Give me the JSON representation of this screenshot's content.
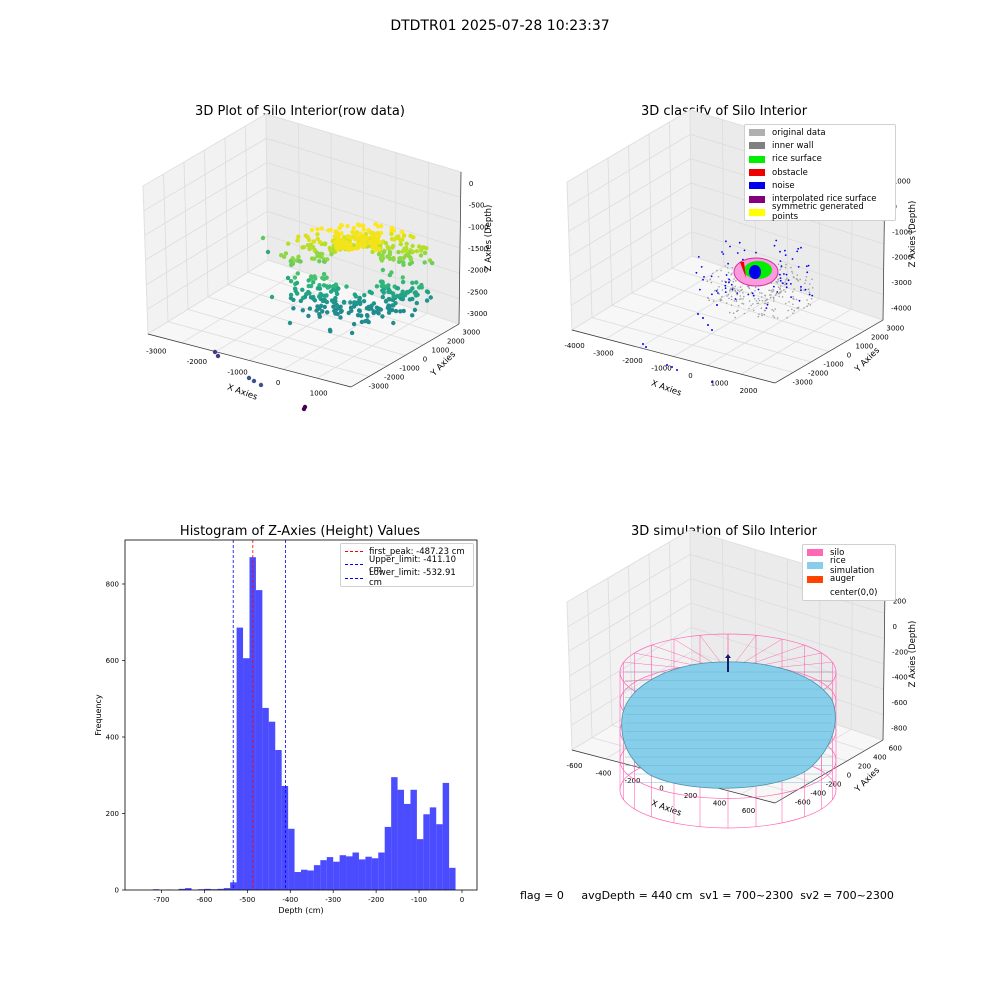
{
  "figure": {
    "suptitle": "DTDTR01 2025-07-28 10:23:37",
    "footer": "flag = 0     avgDepth = 440 cm  sv1 = 700~2300  sv2 = 700~2300"
  },
  "panels": {
    "raw": {
      "title": "3D Plot of Silo Interior(row data)",
      "xlabel": "X Axies",
      "ylabel": "Y Axies",
      "zlabel": "Z Axies (Depth)",
      "xticks": [
        "-3000",
        "-2000",
        "-1000",
        "0",
        "1000"
      ],
      "yticks": [
        "-3000",
        "-2000",
        "-1000",
        "0",
        "1000",
        "2000",
        "3000"
      ],
      "zticks": [
        "0",
        "-500",
        "-1000",
        "-1500",
        "-2000",
        "-2500",
        "-3000"
      ]
    },
    "classify": {
      "title": "3D classify of Silo Interior",
      "xlabel": "X Axies",
      "ylabel": "Y Axies",
      "zlabel": "Z Axies (Depth)",
      "xticks": [
        "-4000",
        "-3000",
        "-2000",
        "-1000",
        "0",
        "1000",
        "2000"
      ],
      "yticks": [
        "-3000",
        "-2000",
        "-1000",
        "0",
        "1000",
        "2000",
        "3000"
      ],
      "zticks": [
        "1000",
        "0",
        "-1000",
        "-2000",
        "-3000",
        "-4000"
      ],
      "legend": [
        {
          "label": "original data",
          "color": "#b0b0b0"
        },
        {
          "label": "inner wall",
          "color": "#808080"
        },
        {
          "label": "rice surface",
          "color": "#00ee00"
        },
        {
          "label": "obstacle",
          "color": "#ee0000"
        },
        {
          "label": "noise",
          "color": "#0000ee"
        },
        {
          "label": "interpolated rice surface",
          "color": "#800080"
        },
        {
          "label": "symmetric generated points",
          "color": "#ffff00"
        }
      ]
    },
    "histogram": {
      "title": "Histogram of Z-Axies (Height) Values",
      "xlabel": "Depth (cm)",
      "ylabel": "Frequency",
      "legend": [
        {
          "label": "first_peak: -487.23 cm",
          "color": "#ff0000"
        },
        {
          "label": "Upper_limit: -411.10 cm",
          "color": "#0000ff"
        },
        {
          "label": "Lower_limit: -532.91 cm",
          "color": "#0000ff"
        }
      ]
    },
    "simulation": {
      "title": "3D simulation of Silo Interior",
      "xlabel": "X Axies",
      "ylabel": "Y Axies",
      "zlabel": "Z Axies (Depth)",
      "xticks": [
        "-600",
        "-400",
        "-200",
        "0",
        "200",
        "400",
        "600"
      ],
      "yticks": [
        "-600",
        "-400",
        "-200",
        "0",
        "200",
        "400",
        "600"
      ],
      "zticks": [
        "200",
        "0",
        "-200",
        "-400",
        "-600",
        "-800"
      ],
      "legend": [
        {
          "label": "silo",
          "color": "#ff69b4"
        },
        {
          "label": "rice simulation",
          "color": "#87ceeb"
        },
        {
          "label": "auger",
          "color": "#ff4500"
        },
        {
          "label": "center(0,0)",
          "color": "#ffffff"
        }
      ]
    }
  },
  "chart_data": {
    "type": "bar",
    "title": "Histogram of Z-Axies (Height) Values",
    "xlabel": "Depth (cm)",
    "ylabel": "Frequency",
    "xlim": [
      -785,
      35
    ],
    "ylim": [
      0,
      915
    ],
    "xticks": [
      -700,
      -600,
      -500,
      -400,
      -300,
      -200,
      -100,
      0
    ],
    "yticks": [
      0,
      200,
      400,
      600,
      800
    ],
    "color": "#0000ff",
    "bins": [
      {
        "x0": -720,
        "x1": -705,
        "y": 2
      },
      {
        "x0": -705,
        "x1": -690,
        "y": 0
      },
      {
        "x0": -690,
        "x1": -675,
        "y": 1
      },
      {
        "x0": -675,
        "x1": -660,
        "y": 0
      },
      {
        "x0": -660,
        "x1": -645,
        "y": 3
      },
      {
        "x0": -645,
        "x1": -630,
        "y": 5
      },
      {
        "x0": -630,
        "x1": -615,
        "y": 0
      },
      {
        "x0": -615,
        "x1": -600,
        "y": 2
      },
      {
        "x0": -600,
        "x1": -585,
        "y": 3
      },
      {
        "x0": -585,
        "x1": -570,
        "y": 2
      },
      {
        "x0": -570,
        "x1": -555,
        "y": 3
      },
      {
        "x0": -555,
        "x1": -540,
        "y": 5
      },
      {
        "x0": -540,
        "x1": -525,
        "y": 20
      },
      {
        "x0": -525,
        "x1": -510,
        "y": 686
      },
      {
        "x0": -510,
        "x1": -495,
        "y": 606
      },
      {
        "x0": -495,
        "x1": -480,
        "y": 870
      },
      {
        "x0": -480,
        "x1": -465,
        "y": 784
      },
      {
        "x0": -465,
        "x1": -450,
        "y": 476
      },
      {
        "x0": -450,
        "x1": -435,
        "y": 440
      },
      {
        "x0": -435,
        "x1": -420,
        "y": 366
      },
      {
        "x0": -420,
        "x1": -405,
        "y": 272
      },
      {
        "x0": -405,
        "x1": -390,
        "y": 160
      },
      {
        "x0": -390,
        "x1": -375,
        "y": 47
      },
      {
        "x0": -375,
        "x1": -360,
        "y": 53
      },
      {
        "x0": -360,
        "x1": -345,
        "y": 51
      },
      {
        "x0": -345,
        "x1": -330,
        "y": 65
      },
      {
        "x0": -330,
        "x1": -315,
        "y": 78
      },
      {
        "x0": -315,
        "x1": -300,
        "y": 86
      },
      {
        "x0": -300,
        "x1": -285,
        "y": 74
      },
      {
        "x0": -285,
        "x1": -270,
        "y": 91
      },
      {
        "x0": -270,
        "x1": -255,
        "y": 88
      },
      {
        "x0": -255,
        "x1": -240,
        "y": 98
      },
      {
        "x0": -240,
        "x1": -225,
        "y": 80
      },
      {
        "x0": -225,
        "x1": -210,
        "y": 87
      },
      {
        "x0": -210,
        "x1": -195,
        "y": 83
      },
      {
        "x0": -195,
        "x1": -180,
        "y": 98
      },
      {
        "x0": -180,
        "x1": -165,
        "y": 165
      },
      {
        "x0": -165,
        "x1": -150,
        "y": 295
      },
      {
        "x0": -150,
        "x1": -135,
        "y": 262
      },
      {
        "x0": -135,
        "x1": -120,
        "y": 225
      },
      {
        "x0": -120,
        "x1": -105,
        "y": 262
      },
      {
        "x0": -105,
        "x1": -90,
        "y": 133
      },
      {
        "x0": -90,
        "x1": -75,
        "y": 198
      },
      {
        "x0": -75,
        "x1": -60,
        "y": 216
      },
      {
        "x0": -60,
        "x1": -45,
        "y": 172
      },
      {
        "x0": -45,
        "x1": -30,
        "y": 280
      },
      {
        "x0": -30,
        "x1": -15,
        "y": 58
      },
      {
        "x0": -15,
        "x1": 0,
        "y": 0
      }
    ],
    "vlines": [
      {
        "name": "first_peak",
        "x": -487.23,
        "color": "#ff0000"
      },
      {
        "name": "Upper_limit",
        "x": -411.1,
        "color": "#0000ff"
      },
      {
        "name": "Lower_limit",
        "x": -532.91,
        "color": "#0000ff"
      }
    ]
  }
}
